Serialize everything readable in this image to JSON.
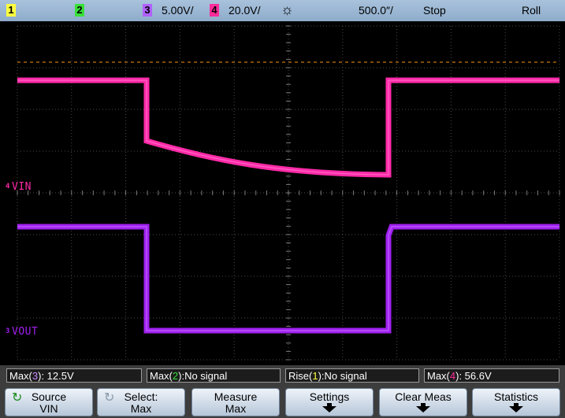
{
  "topbar": {
    "channels": [
      {
        "num": "1",
        "color": "#ffff40"
      },
      {
        "num": "2",
        "color": "#38e038"
      },
      {
        "num": "3",
        "color": "#b061ff"
      },
      {
        "num": "4",
        "color": "#ff2d9b"
      }
    ],
    "ch3_scale": "5.00V/",
    "ch4_scale": "20.0V/",
    "timebase": "500.0″/",
    "run_state": "Stop",
    "mode": "Roll"
  },
  "screen": {
    "labels": {
      "vin": "VIN",
      "vout": "VOUT"
    },
    "ground_markers": {
      "vin": "4",
      "vout": "3"
    },
    "colors": {
      "vin": "#ff2aa8",
      "vout": "#a020f0",
      "grid": "#5a5a5a",
      "trigger": "#c87810",
      "background": "#000000"
    }
  },
  "measurements": [
    {
      "prefix": "Max(",
      "ch": "3",
      "suffix": "): 12.5V"
    },
    {
      "prefix": "Max(",
      "ch": "2",
      "suffix": "):No signal"
    },
    {
      "prefix": "Rise(",
      "ch": "1",
      "suffix": "):No signal"
    },
    {
      "prefix": "Max(",
      "ch": "4",
      "suffix": "): 56.6V"
    }
  ],
  "softkeys": [
    {
      "line1": "Source",
      "line2": "VIN",
      "icon": "rotate-knob-icon"
    },
    {
      "line1": "Select:",
      "line2": "Max",
      "icon": "rotate-knob-icon"
    },
    {
      "line1": "Measure",
      "line2": "Max"
    },
    {
      "line1": "Settings",
      "line2": ""
    },
    {
      "line1": "Clear Meas",
      "line2": ""
    },
    {
      "line1": "Statistics",
      "line2": ""
    }
  ]
}
